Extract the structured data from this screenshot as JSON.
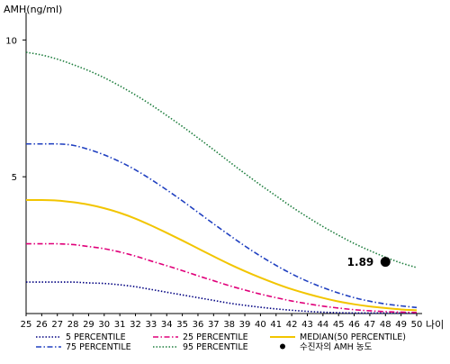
{
  "chart_data": {
    "type": "line",
    "ylabel": "AMH(ng/ml)",
    "xlabel": "나이",
    "xlim": [
      25,
      50
    ],
    "ylim": [
      0,
      11
    ],
    "x_ticks": [
      "25",
      "26",
      "27",
      "28",
      "29",
      "30",
      "31",
      "32",
      "33",
      "34",
      "35",
      "36",
      "37",
      "38",
      "39",
      "40",
      "41",
      "42",
      "43",
      "44",
      "45",
      "46",
      "47",
      "48",
      "49",
      "50"
    ],
    "y_ticks": [
      "5",
      "10"
    ],
    "x": [
      25,
      26,
      27,
      28,
      29,
      30,
      31,
      32,
      33,
      34,
      35,
      36,
      37,
      38,
      39,
      40,
      41,
      42,
      43,
      44,
      45,
      46,
      47,
      48,
      49,
      50
    ],
    "series": [
      {
        "name": "5 PERCENTILE",
        "color": "#000080",
        "dash": "dotted",
        "values": [
          1.15,
          1.15,
          1.15,
          1.15,
          1.12,
          1.1,
          1.05,
          0.98,
          0.88,
          0.78,
          0.68,
          0.58,
          0.48,
          0.38,
          0.3,
          0.23,
          0.17,
          0.12,
          0.08,
          0.05,
          0.03,
          0.02,
          0.02,
          0.02,
          0.02,
          0.02
        ]
      },
      {
        "name": "25 PERCENTILE",
        "color": "#e0007a",
        "dash": "dashdot",
        "values": [
          2.55,
          2.55,
          2.55,
          2.52,
          2.45,
          2.37,
          2.25,
          2.1,
          1.92,
          1.75,
          1.57,
          1.38,
          1.2,
          1.02,
          0.86,
          0.71,
          0.58,
          0.46,
          0.36,
          0.27,
          0.2,
          0.14,
          0.1,
          0.07,
          0.05,
          0.04
        ]
      },
      {
        "name": "MEDIAN(50 PERCENTILE)",
        "color": "#f2c500",
        "dash": "solid",
        "values": [
          4.15,
          4.15,
          4.13,
          4.07,
          3.98,
          3.85,
          3.68,
          3.47,
          3.22,
          2.95,
          2.67,
          2.38,
          2.09,
          1.81,
          1.55,
          1.31,
          1.09,
          0.89,
          0.72,
          0.57,
          0.44,
          0.34,
          0.26,
          0.2,
          0.15,
          0.12
        ]
      },
      {
        "name": "75 PERCENTILE",
        "color": "#2040c0",
        "dash": "dashdot",
        "values": [
          6.2,
          6.2,
          6.2,
          6.15,
          6.0,
          5.8,
          5.55,
          5.25,
          4.9,
          4.52,
          4.12,
          3.7,
          3.28,
          2.87,
          2.47,
          2.1,
          1.76,
          1.45,
          1.18,
          0.95,
          0.75,
          0.58,
          0.45,
          0.35,
          0.28,
          0.22
        ]
      },
      {
        "name": "95 PERCENTILE",
        "color": "#1e7e3e",
        "dash": "dotted",
        "values": [
          9.55,
          9.45,
          9.3,
          9.1,
          8.88,
          8.62,
          8.32,
          7.99,
          7.63,
          7.24,
          6.84,
          6.42,
          5.99,
          5.55,
          5.12,
          4.7,
          4.3,
          3.9,
          3.53,
          3.18,
          2.86,
          2.56,
          2.3,
          2.06,
          1.85,
          1.68
        ]
      }
    ],
    "marker": {
      "name": "수진자의 AMH 농도",
      "x": 48,
      "y": 1.89,
      "label": "1.89",
      "color": "#000000"
    },
    "legend_position": "bottom",
    "grid": false
  }
}
